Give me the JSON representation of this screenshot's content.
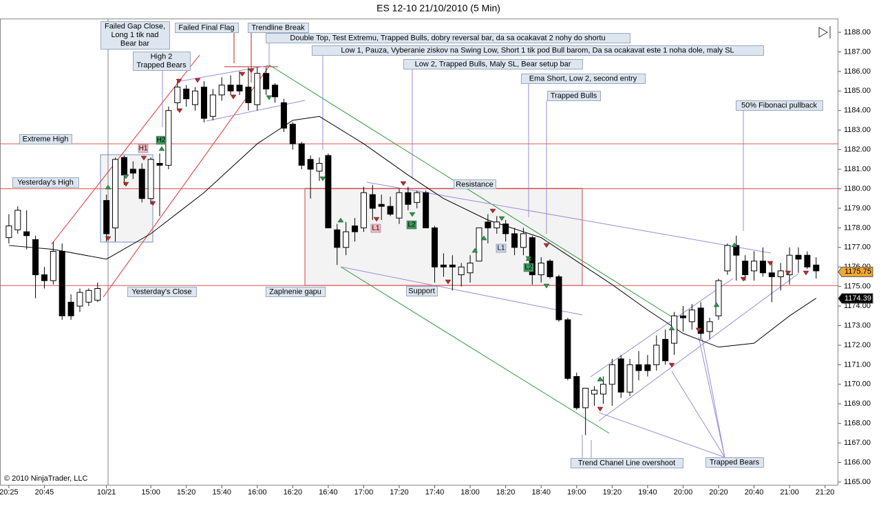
{
  "chart_data": {
    "type": "candlestick",
    "title": "ES 12-10  21/10/2010 (5 Min)",
    "copyright": "© 2010 NinjaTrader, LLC",
    "ylim": [
      1165,
      1188
    ],
    "yticks": [
      {
        "value": 1165,
        "label": "1165.00"
      },
      {
        "value": 1166,
        "label": "1166.00"
      },
      {
        "value": 1167,
        "label": "1167.00"
      },
      {
        "value": 1168,
        "label": "1168.00"
      },
      {
        "value": 1169,
        "label": "1169.00"
      },
      {
        "value": 1170,
        "label": "1170.00"
      },
      {
        "value": 1171,
        "label": "1171.00"
      },
      {
        "value": 1172,
        "label": "1172.00"
      },
      {
        "value": 1173,
        "label": "1173.00"
      },
      {
        "value": 1174,
        "label": "1174.00"
      },
      {
        "value": 1175,
        "label": "1175.00"
      },
      {
        "value": 1176,
        "label": "1176.00"
      },
      {
        "value": 1177,
        "label": "1177.00"
      },
      {
        "value": 1178,
        "label": "1178.00"
      },
      {
        "value": 1179,
        "label": "1179.00"
      },
      {
        "value": 1180,
        "label": "1180.00"
      },
      {
        "value": 1181,
        "label": "1181.00"
      },
      {
        "value": 1182,
        "label": "1182.00"
      },
      {
        "value": 1183,
        "label": "1183.00"
      },
      {
        "value": 1184,
        "label": "1184.00"
      },
      {
        "value": 1185,
        "label": "1185.00"
      },
      {
        "value": 1186,
        "label": "1186.00"
      },
      {
        "value": 1187,
        "label": "1187.00"
      },
      {
        "value": 1188,
        "label": "1188.00"
      }
    ],
    "xlim": [
      -1,
      93.5
    ],
    "xticks": [
      {
        "value": 0,
        "label": "20:25"
      },
      {
        "value": 4,
        "label": "20:45"
      },
      {
        "value": 11,
        "label": "10/21"
      },
      {
        "value": 16,
        "label": "15:00"
      },
      {
        "value": 20,
        "label": "15:20"
      },
      {
        "value": 24,
        "label": "15:40"
      },
      {
        "value": 28,
        "label": "16:00"
      },
      {
        "value": 32,
        "label": "16:20"
      },
      {
        "value": 36,
        "label": "16:40"
      },
      {
        "value": 40,
        "label": "17:00"
      },
      {
        "value": 44,
        "label": "17:20"
      },
      {
        "value": 48,
        "label": "17:40"
      },
      {
        "value": 52,
        "label": "18:00"
      },
      {
        "value": 56,
        "label": "18:20"
      },
      {
        "value": 60,
        "label": "18:40"
      },
      {
        "value": 64,
        "label": "19:00"
      },
      {
        "value": 68,
        "label": "19:20"
      },
      {
        "value": 72,
        "label": "19:40"
      },
      {
        "value": 76,
        "label": "20:00"
      },
      {
        "value": 80,
        "label": "20:20"
      },
      {
        "value": 84,
        "label": "20:40"
      },
      {
        "value": 88,
        "label": "21:00"
      },
      {
        "value": 92,
        "label": "21:20"
      }
    ],
    "up_color": "#ffffff",
    "down_color": "#000000",
    "open": [
      1177.5,
      1177.9,
      1177.8,
      1177.4,
      1175.6,
      1175.3,
      1176.8,
      1174.2,
      1174,
      1174.2,
      1174.3,
      1179.4,
      1178,
      1181.6,
      1181,
      1181,
      1179.5,
      1181.3,
      1181.2,
      1184.4,
      1185.1,
      1184.3,
      1185.2,
      1183.7,
      1184.8,
      1185.3,
      1185.3,
      1185.2,
      1184.3,
      1185.9,
      1185.3,
      1184.4,
      1183.3,
      1182.3,
      1181.5,
      1180.9,
      1181.7,
      1177.9,
      1177,
      1178.1,
      1178,
      1179.7,
      1179.2,
      1179.1,
      1178.5,
      1179.8,
      1179.3,
      1179.8,
      1178,
      1176.1,
      1176.1,
      1175.6,
      1175.7,
      1176.3,
      1178.3,
      1178,
      1178.2,
      1177.7,
      1177,
      1177.5,
      1175.6,
      1176.3,
      1175.5,
      1173.3,
      1170.4,
      1168.8,
      1169.5,
      1169.5,
      1170,
      1171.3,
      1169.6,
      1171,
      1171,
      1171,
      1172.3,
      1172.1,
      1173.5,
      1173.2,
      1173.9,
      1172.7,
      1173.5,
      1175.8,
      1177.1,
      1176.3,
      1175.8,
      1176.3,
      1175.7,
      1175.5,
      1175.6,
      1176.6,
      1176.6,
      1176.1
    ],
    "high": [
      1178.7,
      1179.1,
      1178.9,
      1177.6,
      1176,
      1177.3,
      1177.2,
      1174.6,
      1174.9,
      1174.9,
      1175.2,
      1179.7,
      1181.6,
      1181.7,
      1181.4,
      1181.3,
      1181.6,
      1181.8,
      1184.2,
      1185.5,
      1185.3,
      1185.2,
      1185.5,
      1185.1,
      1185.7,
      1185.8,
      1186,
      1186.2,
      1186.2,
      1186.2,
      1185.4,
      1184.6,
      1183.4,
      1182.4,
      1181.7,
      1181.6,
      1181.8,
      1178.2,
      1178.3,
      1178.5,
      1180.1,
      1180.2,
      1179.7,
      1179.6,
      1180,
      1180.1,
      1179.9,
      1179.9,
      1178.1,
      1176.7,
      1176.6,
      1176.2,
      1176.6,
      1178,
      1178.7,
      1178.6,
      1178.4,
      1178,
      1178,
      1177.6,
      1176.5,
      1176.4,
      1175.6,
      1173.4,
      1170.6,
      1169.8,
      1169.9,
      1170.4,
      1171.3,
      1171.5,
      1171.3,
      1171.7,
      1171.5,
      1172.5,
      1172.8,
      1173.7,
      1174,
      1174.1,
      1174.2,
      1173.4,
      1175.4,
      1177.2,
      1177.6,
      1176.6,
      1176.8,
      1177,
      1176.3,
      1176.2,
      1177,
      1177,
      1176.8,
      1176.5
    ],
    "low": [
      1177.2,
      1177.7,
      1176.9,
      1174.4,
      1174.9,
      1175.1,
      1173.3,
      1173.3,
      1173.7,
      1174,
      1174.2,
      1177.3,
      1177.3,
      1180.2,
      1180.5,
      1179.3,
      1179.2,
      1178.6,
      1181,
      1184,
      1184.2,
      1184,
      1183.4,
      1183.5,
      1184.5,
      1184.8,
      1184.8,
      1184,
      1184,
      1184.8,
      1184.4,
      1182.9,
      1182,
      1181,
      1179.5,
      1180.4,
      1178,
      1176.1,
      1176.6,
      1177.3,
      1177.8,
      1178.4,
      1178.4,
      1178.6,
      1178.2,
      1178.9,
      1179,
      1178,
      1175.2,
      1175.5,
      1174.8,
      1175,
      1175.2,
      1176.3,
      1177.2,
      1177.7,
      1177.3,
      1176.6,
      1176.6,
      1175.1,
      1175.2,
      1175.4,
      1173.2,
      1170.2,
      1168.7,
      1167.4,
      1168.9,
      1169,
      1168.9,
      1169.3,
      1169.4,
      1170.2,
      1170.4,
      1170.7,
      1171,
      1171.5,
      1172.7,
      1172.8,
      1172.3,
      1172.3,
      1173.3,
      1175.6,
      1175.3,
      1175.3,
      1175.3,
      1175.5,
      1174.2,
      1174.8,
      1175.1,
      1175.7,
      1175.9,
      1175.4
    ],
    "close": [
      1178.1,
      1178.9,
      1177.6,
      1175.6,
      1175.3,
      1176.8,
      1173.5,
      1173.5,
      1174.7,
      1174.8,
      1174.9,
      1177.7,
      1181.5,
      1180.7,
      1180.8,
      1179.5,
      1181.5,
      1181.2,
      1184,
      1185.2,
      1184.6,
      1185,
      1183.6,
      1184.8,
      1185.3,
      1185,
      1185,
      1184.4,
      1185.9,
      1185.1,
      1184.7,
      1183.1,
      1182.3,
      1181.2,
      1181,
      1181.3,
      1178,
      1177,
      1177.8,
      1177.8,
      1179.8,
      1179,
      1179.1,
      1178.7,
      1179.8,
      1179.2,
      1179.8,
      1178,
      1176,
      1176,
      1176,
      1176,
      1176.2,
      1178,
      1178,
      1178.3,
      1177.7,
      1177,
      1177.7,
      1175.6,
      1176.2,
      1175.5,
      1173.3,
      1170.3,
      1168.8,
      1169.8,
      1169.7,
      1170,
      1171,
      1169.6,
      1171,
      1170.7,
      1170.7,
      1172,
      1171.2,
      1173.5,
      1173.4,
      1173.8,
      1172.6,
      1173.2,
      1175.3,
      1177.1,
      1176.6,
      1175.6,
      1176.3,
      1175.7,
      1175.5,
      1175.8,
      1176.6,
      1176.4,
      1176,
      1175.8
    ],
    "ema": {
      "color": "#000000",
      "x": [
        0,
        5,
        11,
        16,
        22,
        28,
        32,
        35,
        40,
        45,
        49,
        54,
        60,
        64,
        68,
        72,
        76,
        80,
        84,
        88,
        91
      ],
      "values": [
        1177.1,
        1176.9,
        1176.4,
        1177.7,
        1179.8,
        1182.3,
        1183.5,
        1183.7,
        1182.3,
        1180.7,
        1179.5,
        1178.4,
        1177.5,
        1176.3,
        1175.1,
        1173.8,
        1172.6,
        1171.9,
        1172.1,
        1173.5,
        1174.4
      ]
    },
    "levels": {
      "color": "#e05050",
      "values": [
        1182.3,
        1180,
        1175.05
      ]
    },
    "price_markers": [
      1175.75,
      1174.39
    ],
    "price_marker_colors": [
      "#f0a830",
      "#000000"
    ],
    "signals": [
      {
        "label": "H1",
        "color": "#f4b8c0"
      },
      {
        "label": "H2",
        "color": "#3c9a5a"
      },
      {
        "label": "L1",
        "color": "#f4b8c0"
      },
      {
        "label": "L2",
        "color": "#3c9a5a"
      },
      {
        "label": "L1",
        "color": "#c8d8f0"
      },
      {
        "label": "L2",
        "color": "#3c9a5a"
      }
    ],
    "annotations": [
      [
        "Failed Gap Close,",
        "Long 1 tik nad",
        "Bear bar"
      ],
      [
        "High 2",
        "Trapped Bears"
      ],
      [
        "Failed Final Flag"
      ],
      [
        "Trendline Break"
      ],
      [
        "Double Top, Test Extremu, Trapped Bulls, dobry reversal bar, da sa ocakavat 2 nohy do shortu"
      ],
      [
        "Low 1, Pauza, Vyberanie ziskov na Swing Low, Short 1 tik pod Bull barom, Da sa ocakavat este 1 noha dole, maly SL"
      ],
      [
        "Low 2, Trapped Bulls, Maly SL, Bear setup bar"
      ],
      [
        "Ema Short, Low 2, second entry"
      ],
      [
        "Trapped Bulls"
      ],
      [
        "50% Fibonaci pullback"
      ],
      [
        "Extreme High"
      ],
      [
        "Yesterday's High"
      ],
      [
        "Resistance"
      ],
      [
        "Yesterday's Close"
      ],
      [
        "Zaplnenie gapu"
      ],
      [
        "Support"
      ],
      [
        "Trend Chanel Line overshoot"
      ],
      [
        "Trapped Bears"
      ]
    ]
  }
}
